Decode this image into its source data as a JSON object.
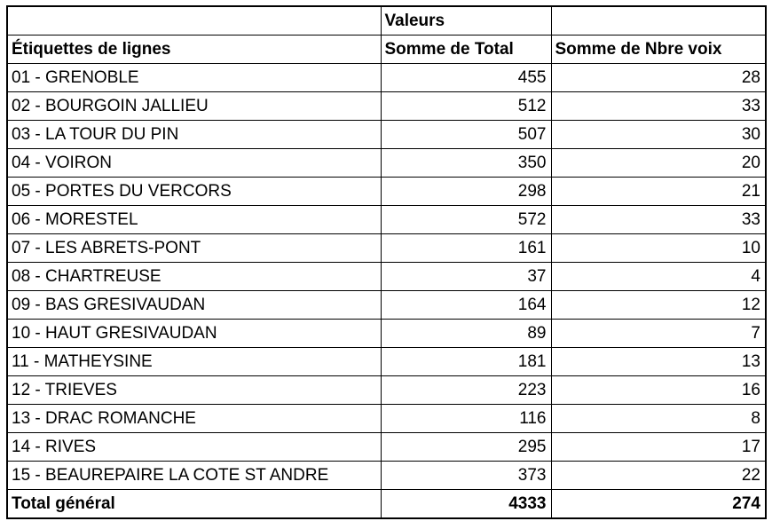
{
  "page": {
    "background": "#FFFFFF"
  },
  "pivot_table": {
    "corner_label": "",
    "values_header": "Valeurs",
    "values_header_spacer": "",
    "columns": {
      "row_labels": "Étiquettes de lignes",
      "sum_total": "Somme de Total",
      "sum_voix": "Somme de Nbre voix"
    },
    "rows": [
      {
        "label": "01 - GRENOBLE",
        "total": 455,
        "voix": 28
      },
      {
        "label": "02 - BOURGOIN JALLIEU",
        "total": 512,
        "voix": 33
      },
      {
        "label": "03 - LA TOUR DU PIN",
        "total": 507,
        "voix": 30
      },
      {
        "label": "04 - VOIRON",
        "total": 350,
        "voix": 20
      },
      {
        "label": "05 - PORTES DU VERCORS",
        "total": 298,
        "voix": 21
      },
      {
        "label": "06 - MORESTEL",
        "total": 572,
        "voix": 33
      },
      {
        "label": "07 - LES ABRETS-PONT",
        "total": 161,
        "voix": 10
      },
      {
        "label": "08 - CHARTREUSE",
        "total": 37,
        "voix": 4
      },
      {
        "label": "09 - BAS GRESIVAUDAN",
        "total": 164,
        "voix": 12
      },
      {
        "label": "10 - HAUT GRESIVAUDAN",
        "total": 89,
        "voix": 7
      },
      {
        "label": "11 - MATHEYSINE",
        "total": 181,
        "voix": 13
      },
      {
        "label": "12 - TRIEVES",
        "total": 223,
        "voix": 16
      },
      {
        "label": "13 - DRAC ROMANCHE",
        "total": 116,
        "voix": 8
      },
      {
        "label": "14 - RIVES",
        "total": 295,
        "voix": 17
      },
      {
        "label": "15 - BEAUREPAIRE LA COTE ST ANDRE",
        "total": 373,
        "voix": 22
      }
    ],
    "grand_total": {
      "label": "Total général",
      "total": 4333,
      "voix": 274
    },
    "colors": {
      "header_bg": "#DCE6F1",
      "border": "#000000",
      "row_bg": "#FFFFFF",
      "text": "#000000"
    }
  }
}
